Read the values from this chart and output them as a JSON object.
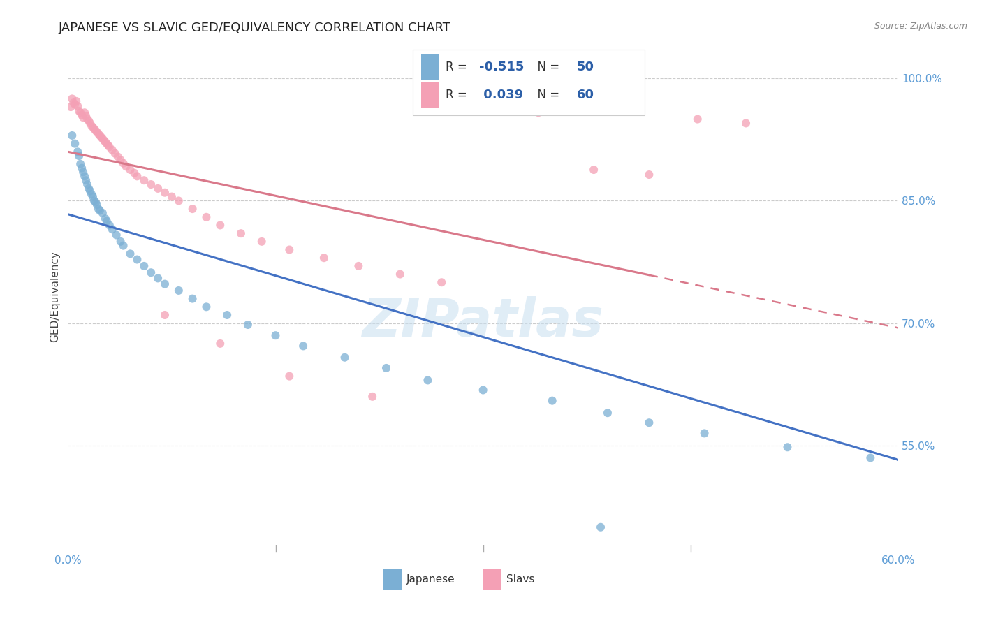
{
  "title": "JAPANESE VS SLAVIC GED/EQUIVALENCY CORRELATION CHART",
  "source": "Source: ZipAtlas.com",
  "ylabel": "GED/Equivalency",
  "xlim": [
    0.0,
    0.6
  ],
  "ylim": [
    0.42,
    1.045
  ],
  "yticks": [
    0.55,
    0.7,
    0.85,
    1.0
  ],
  "ytick_labels": [
    "55.0%",
    "70.0%",
    "85.0%",
    "100.0%"
  ],
  "watermark": "ZIPatlas",
  "japanese_color": "#7bafd4",
  "slavic_color": "#f4a0b5",
  "japanese_line_color": "#4472c4",
  "slavic_line_color": "#d9788a",
  "background_color": "#ffffff",
  "title_fontsize": 13,
  "axis_label_fontsize": 11,
  "tick_fontsize": 11,
  "legend_fontsize": 13
}
